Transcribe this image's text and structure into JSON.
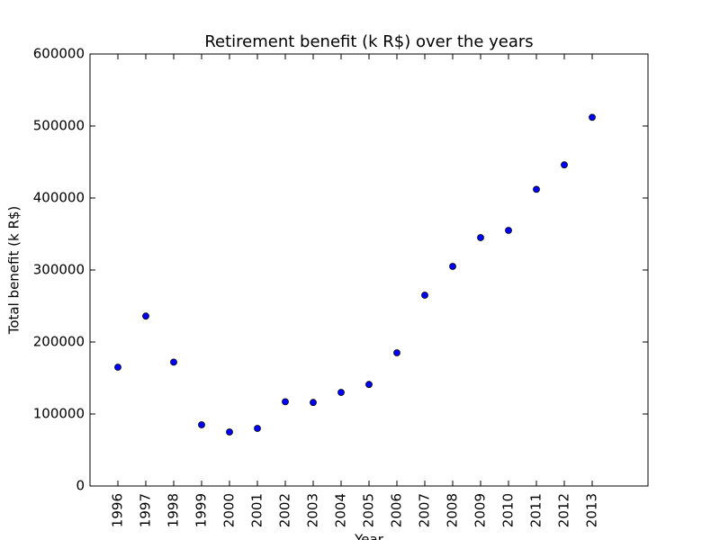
{
  "chart_data": {
    "type": "scatter",
    "title": "Retirement benefit (k R$) over the years",
    "x_label": "Year",
    "y_label": "Total benefit (k R$)",
    "x": [
      1996,
      1997,
      1998,
      1999,
      2000,
      2001,
      2002,
      2003,
      2004,
      2005,
      2006,
      2007,
      2008,
      2009,
      2010,
      2011,
      2012,
      2013
    ],
    "series": [
      {
        "color": "#0000ff",
        "values": [
          165000,
          236000,
          172000,
          85000,
          75000,
          80000,
          117000,
          116000,
          130000,
          141000,
          185000,
          265000,
          305000,
          345000,
          355000,
          412000,
          446000,
          512000
        ]
      }
    ],
    "xlim": [
      1995,
      2015
    ],
    "xticks": [
      1996,
      1997,
      1998,
      1999,
      2000,
      2001,
      2002,
      2003,
      2004,
      2005,
      2006,
      2007,
      2008,
      2009,
      2010,
      2011,
      2012,
      2013
    ],
    "ylim": [
      0,
      600000
    ],
    "yticks": [
      0,
      100000,
      200000,
      300000,
      400000,
      500000,
      600000
    ],
    "grid": false
  }
}
